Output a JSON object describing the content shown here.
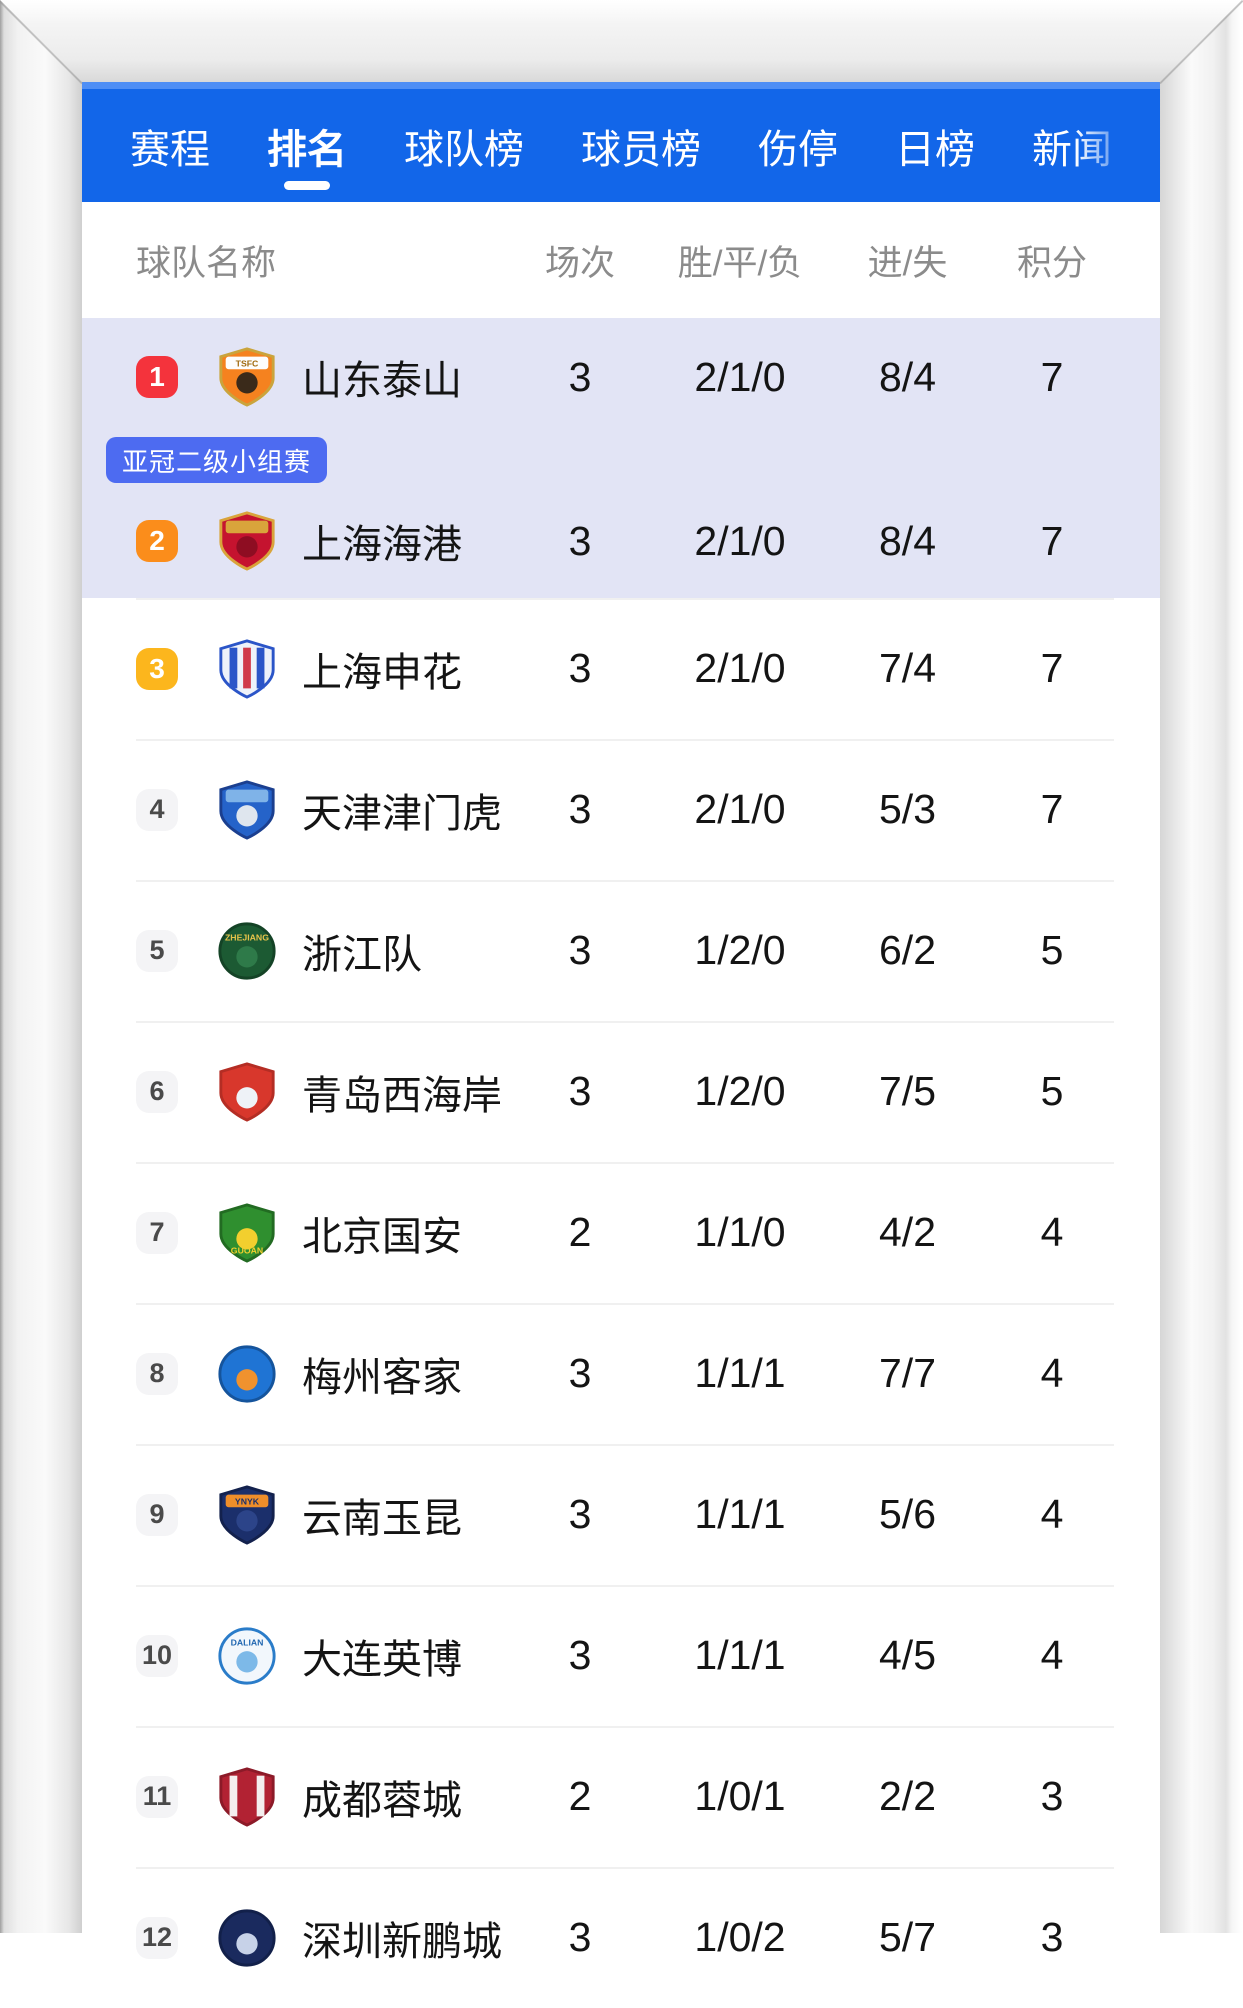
{
  "ui": {
    "nav_bg": "#1266e9",
    "nav_strip": "#4e8ef5",
    "highlight_bg": "#e2e4f5",
    "tag_bg": "#4d6bf1",
    "divider": "#f0f0f0",
    "header_text": "#8b8b8b"
  },
  "nav": {
    "tabs": [
      {
        "label": "赛程",
        "active": false,
        "faded": false
      },
      {
        "label": "排名",
        "active": true,
        "faded": false
      },
      {
        "label": "球队榜",
        "active": false,
        "faded": false
      },
      {
        "label": "球员榜",
        "active": false,
        "faded": false
      },
      {
        "label": "伤停",
        "active": false,
        "faded": false
      },
      {
        "label": "日榜",
        "active": false,
        "faded": false
      },
      {
        "label": "新闻",
        "active": false,
        "faded": true
      }
    ]
  },
  "table": {
    "headers": {
      "team": "球队名称",
      "matches": "场次",
      "wdl": "胜/平/负",
      "goals": "进/失",
      "points": "积分"
    },
    "tag_label": "亚冠二级小组赛",
    "rows": [
      {
        "rank": "1",
        "name": "山东泰山",
        "matches": "3",
        "wdl": "2/1/0",
        "goals": "8/4",
        "points": "7",
        "rank_bg": "#f4333c",
        "rank_fg": "#ffffff",
        "highlight": "hl1",
        "tag_before": false,
        "logo": {
          "shape": "shield",
          "base": "#f5821f",
          "stroke": "#caa43c",
          "band": "#fdfdfd",
          "initials": "TSFC",
          "txt": "#a06a10",
          "accent": "#3a2a1a"
        }
      },
      {
        "rank": "2",
        "name": "上海海港",
        "matches": "3",
        "wdl": "2/1/0",
        "goals": "8/4",
        "points": "7",
        "rank_bg": "#fb8d1b",
        "rank_fg": "#ffffff",
        "highlight": "hl2",
        "tag_before": true,
        "logo": {
          "shape": "shield",
          "base": "#c5132f",
          "stroke": "#d9a43b",
          "band": "#d9a43b",
          "initials": "",
          "txt": "#ffffff",
          "accent": "#8e0d22"
        }
      },
      {
        "rank": "3",
        "name": "上海申花",
        "matches": "3",
        "wdl": "2/1/0",
        "goals": "7/4",
        "points": "7",
        "rank_bg": "#fcb61d",
        "rank_fg": "#ffffff",
        "highlight": "",
        "tag_before": false,
        "logo": {
          "shape": "shield",
          "base": "#eef2fa",
          "stroke": "#2b55c8",
          "stripes": [
            "#2b55c8",
            "#d03a4a",
            "#2b55c8"
          ],
          "initials": "",
          "txt": "#ffffff"
        }
      },
      {
        "rank": "4",
        "name": "天津津门虎",
        "matches": "3",
        "wdl": "2/1/0",
        "goals": "5/3",
        "points": "7",
        "rank_bg": "#f4f4f6",
        "rank_fg": "#4a4a4a",
        "highlight": "",
        "tag_before": false,
        "logo": {
          "shape": "shield",
          "base": "#2563c9",
          "stroke": "#1b3f8f",
          "band": "#7fb3e8",
          "initials": "",
          "txt": "#ffffff",
          "accent": "#dfe6ee"
        }
      },
      {
        "rank": "5",
        "name": "浙江队",
        "matches": "3",
        "wdl": "1/2/0",
        "goals": "6/2",
        "points": "5",
        "rank_bg": "#f4f4f6",
        "rank_fg": "#4a4a4a",
        "highlight": "",
        "tag_before": false,
        "logo": {
          "shape": "circle",
          "base": "#1c5a33",
          "stroke": "#144326",
          "initials": "ZHEJIANG",
          "txt": "#e8c34a",
          "accent": "#2e7a49"
        }
      },
      {
        "rank": "6",
        "name": "青岛西海岸",
        "matches": "3",
        "wdl": "1/2/0",
        "goals": "7/5",
        "points": "5",
        "rank_bg": "#f4f4f6",
        "rank_fg": "#4a4a4a",
        "highlight": "",
        "tag_before": false,
        "logo": {
          "shape": "shield",
          "base": "#d8372c",
          "stroke": "#b42d24",
          "initials": "",
          "txt": "#ffffff",
          "accent": "#eef2f7"
        }
      },
      {
        "rank": "7",
        "name": "北京国安",
        "matches": "2",
        "wdl": "1/1/0",
        "goals": "4/2",
        "points": "4",
        "rank_bg": "#f4f4f6",
        "rank_fg": "#4a4a4a",
        "highlight": "",
        "tag_before": false,
        "logo": {
          "shape": "shield",
          "base": "#2f8f2f",
          "stroke": "#226b22",
          "initials": "GUOAN",
          "txt": "#f2cf2e",
          "accent": "#f2cf2e",
          "initials_bottom": true
        }
      },
      {
        "rank": "8",
        "name": "梅州客家",
        "matches": "3",
        "wdl": "1/1/1",
        "goals": "7/7",
        "points": "4",
        "rank_bg": "#f4f4f6",
        "rank_fg": "#4a4a4a",
        "highlight": "",
        "tag_before": false,
        "logo": {
          "shape": "circle",
          "base": "#1f74d4",
          "stroke": "#15549c",
          "initials": "",
          "txt": "#ffffff",
          "accent": "#f0922e"
        }
      },
      {
        "rank": "9",
        "name": "云南玉昆",
        "matches": "3",
        "wdl": "1/1/1",
        "goals": "5/6",
        "points": "4",
        "rank_bg": "#f4f4f6",
        "rank_fg": "#4a4a4a",
        "highlight": "",
        "tag_before": false,
        "logo": {
          "shape": "shield",
          "base": "#1b2f6b",
          "stroke": "#13214d",
          "band": "#ef8e2a",
          "initials": "YNYK",
          "txt": "#1b2f6b",
          "accent": "#2c4489"
        }
      },
      {
        "rank": "10",
        "name": "大连英博",
        "matches": "3",
        "wdl": "1/1/1",
        "goals": "4/5",
        "points": "4",
        "rank_bg": "#f4f4f6",
        "rank_fg": "#4a4a4a",
        "highlight": "",
        "tag_before": false,
        "logo": {
          "shape": "circle",
          "base": "#f2f7fc",
          "stroke": "#2a7cc9",
          "initials": "DALIAN",
          "txt": "#1f66b0",
          "accent": "#7db9e8"
        }
      },
      {
        "rank": "11",
        "name": "成都蓉城",
        "matches": "2",
        "wdl": "1/0/1",
        "goals": "2/2",
        "points": "3",
        "rank_bg": "#f4f4f6",
        "rank_fg": "#4a4a4a",
        "highlight": "",
        "tag_before": false,
        "logo": {
          "shape": "shield",
          "base": "#b22233",
          "stroke": "#8c1a28",
          "stripes": [
            "#f4eeee",
            "#b22233",
            "#f4eeee"
          ],
          "initials": "",
          "txt": "#ffffff"
        }
      },
      {
        "rank": "12",
        "name": "深圳新鹏城",
        "matches": "3",
        "wdl": "1/0/2",
        "goals": "5/7",
        "points": "3",
        "rank_bg": "#f4f4f6",
        "rank_fg": "#4a4a4a",
        "highlight": "",
        "tag_before": false,
        "logo": {
          "shape": "circle",
          "base": "#1a2a5e",
          "stroke": "#12204a",
          "initials": "",
          "txt": "#ffffff",
          "accent": "#c7d2e8"
        }
      }
    ]
  }
}
